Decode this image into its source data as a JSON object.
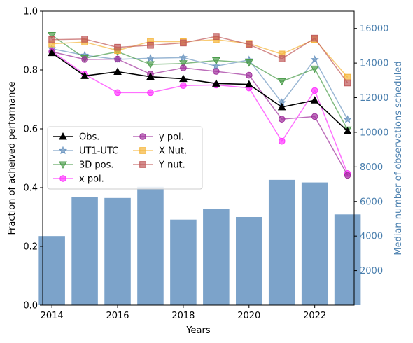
{
  "chart_data": {
    "type": "line",
    "title": "",
    "xlabel": "Years",
    "ylabel": "Fraction of acheived performance",
    "ylabel_right": "Median number of observations scheduled",
    "x": [
      2014,
      2015,
      2016,
      2017,
      2018,
      2019,
      2020,
      2021,
      2022,
      2023
    ],
    "xlim": [
      2014,
      2023.2
    ],
    "ylim": [
      0.0,
      1.0
    ],
    "ylim_right": [
      0,
      17000
    ],
    "x_ticks": [
      "2014",
      "2016",
      "2018",
      "2020",
      "2022"
    ],
    "y_ticks": [
      "0.0",
      "0.2",
      "0.4",
      "0.6",
      "0.8",
      "1.0"
    ],
    "y_ticks_right": [
      "2000",
      "4000",
      "6000",
      "8000",
      "10000",
      "12000",
      "14000",
      "16000"
    ],
    "legend_position": "center-left",
    "grid": false,
    "bars": {
      "axis": "right",
      "color": "#4a7fb5",
      "values": [
        4000,
        6250,
        6200,
        6850,
        4950,
        5550,
        5100,
        7250,
        7100,
        5250
      ]
    },
    "series": [
      {
        "name": "Obs.",
        "color": "#000000",
        "marker": "triangle-up",
        "values": [
          0.858,
          0.78,
          0.794,
          0.777,
          0.77,
          0.754,
          0.751,
          0.674,
          0.697,
          0.592
        ]
      },
      {
        "name": "UT1-UTC",
        "color": "#6f98c2",
        "marker": "star",
        "values": [
          0.872,
          0.85,
          0.836,
          0.84,
          0.842,
          0.813,
          0.834,
          0.689,
          0.835,
          0.632
        ]
      },
      {
        "name": "3D pos.",
        "color": "#4c9c4c",
        "marker": "triangle-down",
        "values": [
          0.918,
          0.84,
          0.862,
          0.819,
          0.822,
          0.832,
          0.825,
          0.761,
          0.804,
          0.597
        ]
      },
      {
        "name": "x pol.",
        "color": "#ff33ff",
        "marker": "circle",
        "values": [
          0.863,
          0.785,
          0.723,
          0.723,
          0.747,
          0.749,
          0.739,
          0.558,
          0.73,
          0.448
        ]
      },
      {
        "name": "y pol.",
        "color": "#a0309c",
        "marker": "circle",
        "values": [
          0.862,
          0.836,
          0.837,
          0.786,
          0.807,
          0.795,
          0.782,
          0.633,
          0.642,
          0.442
        ]
      },
      {
        "name": "X Nut.",
        "color": "#f5b53a",
        "marker": "square",
        "values": [
          0.889,
          0.895,
          0.866,
          0.897,
          0.896,
          0.903,
          0.89,
          0.854,
          0.904,
          0.775
        ]
      },
      {
        "name": "Y nut.",
        "color": "#c05a5a",
        "marker": "square",
        "values": [
          0.903,
          0.905,
          0.877,
          0.884,
          0.892,
          0.914,
          0.887,
          0.838,
          0.908,
          0.756
        ]
      }
    ]
  }
}
